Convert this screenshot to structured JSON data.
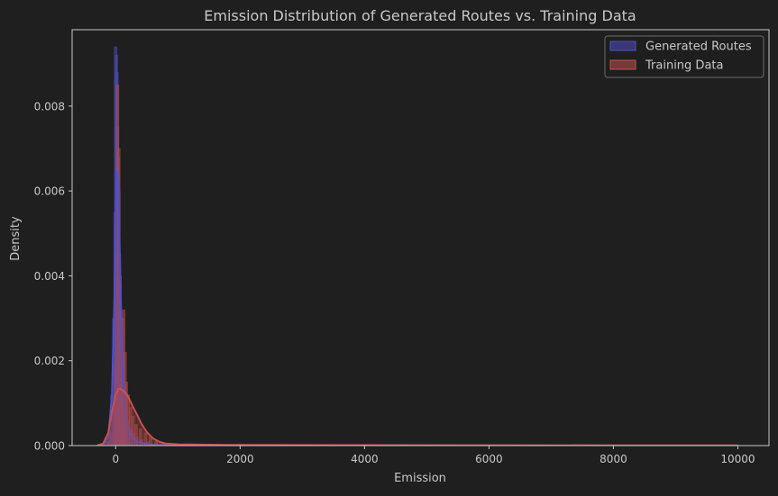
{
  "colors": {
    "background": "#1f1f1f",
    "axes_spine": "#c8c8c8",
    "text": "#c8c8c8",
    "generated_fill": "#4a4ab0",
    "generated_line": "#5050c8",
    "training_fill": "#b04a4a",
    "training_line": "#c85050",
    "legend_bg": "#1f1f1f",
    "legend_border": "#6a6a6a"
  },
  "chart_data": {
    "type": "area",
    "title": "Emission Distribution of Generated Routes vs. Training Data",
    "xlabel": "Emission",
    "ylabel": "Density",
    "xlim": [
      -700,
      10500
    ],
    "ylim": [
      0,
      0.0098
    ],
    "x_ticks": [
      0,
      2000,
      4000,
      6000,
      8000,
      10000
    ],
    "x_tick_labels": [
      "0",
      "2000",
      "4000",
      "6000",
      "8000",
      "10000"
    ],
    "y_ticks": [
      0,
      0.002,
      0.004,
      0.006,
      0.008
    ],
    "y_tick_labels": [
      "0.000",
      "0.002",
      "0.004",
      "0.006",
      "0.008"
    ],
    "grid": false,
    "legend_position": "top-right",
    "series": [
      {
        "name": "Generated Routes",
        "kind": "histogram+kde",
        "kde_x": [
          -300,
          -200,
          -120,
          -60,
          -20,
          0,
          20,
          40,
          60,
          80,
          100,
          130,
          160,
          200,
          260,
          340,
          450,
          600,
          800,
          1000,
          2000,
          4000,
          6000,
          8000,
          10000
        ],
        "kde_y": [
          0.0,
          2e-05,
          0.0002,
          0.0012,
          0.0035,
          0.0055,
          0.0065,
          0.0062,
          0.005,
          0.0036,
          0.0024,
          0.0013,
          0.0007,
          0.0004,
          0.0002,
          0.0001,
          5e-05,
          2e-05,
          1e-05,
          5e-06,
          3e-06,
          2e-06,
          1e-06,
          1e-06,
          0.0
        ],
        "hist_x": [
          -180,
          -140,
          -100,
          -60,
          -30,
          -10,
          0,
          10,
          20,
          30,
          40,
          50,
          60,
          70,
          80,
          90,
          100,
          120,
          140,
          160,
          190,
          230,
          280,
          340,
          420,
          520,
          650,
          800,
          1000
        ],
        "hist_y": [
          2e-05,
          0.0001,
          0.0004,
          0.0012,
          0.003,
          0.0055,
          0.0094,
          0.0092,
          0.0088,
          0.0075,
          0.0068,
          0.006,
          0.0045,
          0.0038,
          0.003,
          0.0025,
          0.002,
          0.0014,
          0.001,
          0.0008,
          0.0006,
          0.0004,
          0.0003,
          0.0002,
          0.00015,
          0.0001,
          6e-05,
          4e-05,
          2e-05
        ]
      },
      {
        "name": "Training Data",
        "kind": "histogram+kde",
        "kde_x": [
          -300,
          -200,
          -120,
          -60,
          0,
          40,
          80,
          120,
          160,
          200,
          250,
          300,
          360,
          420,
          500,
          600,
          700,
          800,
          1000,
          1500,
          2000,
          4000,
          6000,
          8000,
          10000
        ],
        "kde_y": [
          0.0,
          5e-05,
          0.0003,
          0.0008,
          0.0012,
          0.00133,
          0.00134,
          0.0013,
          0.00124,
          0.00115,
          0.001,
          0.00085,
          0.00068,
          0.0005,
          0.00032,
          0.00017,
          9e-05,
          5e-05,
          3e-05,
          2e-05,
          1.5e-05,
          1e-05,
          8e-06,
          6e-06,
          5e-06
        ],
        "hist_x": [
          -120,
          -80,
          -40,
          -10,
          10,
          30,
          50,
          70,
          90,
          110,
          130,
          150,
          170,
          200,
          240,
          280,
          330,
          400,
          480,
          560,
          650,
          750
        ],
        "hist_y": [
          0.0001,
          0.0003,
          0.0008,
          0.002,
          0.0045,
          0.0085,
          0.007,
          0.004,
          0.0025,
          0.003,
          0.0032,
          0.0022,
          0.0015,
          0.0012,
          0.0009,
          0.0007,
          0.0005,
          0.0004,
          0.0003,
          0.0002,
          0.0001,
          6e-05
        ]
      }
    ]
  }
}
